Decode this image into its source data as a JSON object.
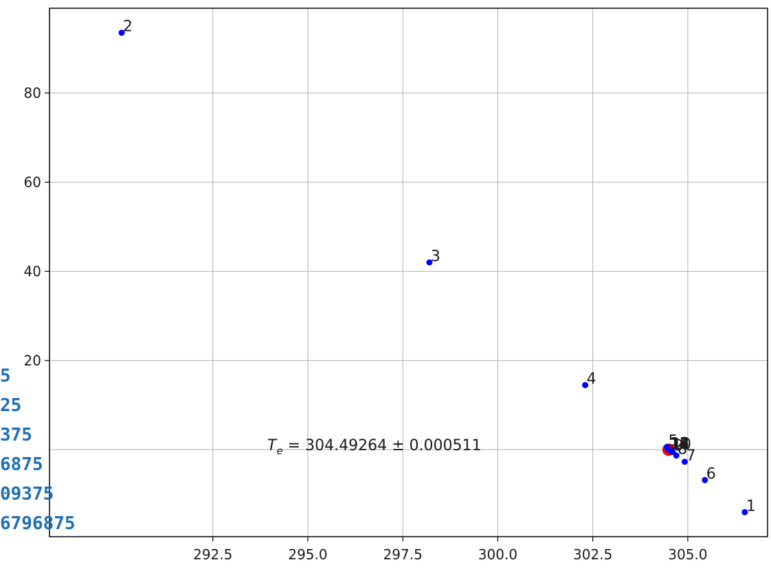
{
  "chart_data": {
    "type": "scatter",
    "title": "",
    "xlabel": "",
    "ylabel": "",
    "xlim": [
      288.2,
      307.1
    ],
    "ylim": [
      -19.5,
      99
    ],
    "grid": true,
    "xticks": [
      "292.5",
      "295.0",
      "297.5",
      "300.0",
      "302.5",
      "305.0"
    ],
    "yticks": [
      "20",
      "40",
      "60",
      "80"
    ],
    "points": [
      {
        "label": "1",
        "x": 306.5,
        "y": -14.0
      },
      {
        "label": "2",
        "x": 290.1,
        "y": 93.5
      },
      {
        "label": "3",
        "x": 298.2,
        "y": 42.0
      },
      {
        "label": "4",
        "x": 302.3,
        "y": 14.5
      },
      {
        "label": "5",
        "x": 304.45,
        "y": 0.6
      },
      {
        "label": "6",
        "x": 305.45,
        "y": -6.8
      },
      {
        "label": "7",
        "x": 304.92,
        "y": -2.7
      },
      {
        "label": "8",
        "x": 304.7,
        "y": -1.3
      },
      {
        "label": "9",
        "x": 304.6,
        "y": -0.5
      },
      {
        "label": "10",
        "x": 304.55,
        "y": -0.2
      },
      {
        "label": "11",
        "x": 304.52,
        "y": -0.1
      },
      {
        "label": "12",
        "x": 304.5,
        "y": -0.05
      },
      {
        "label": "13",
        "x": 304.495,
        "y": 0.0
      },
      {
        "label": "14",
        "x": 304.493,
        "y": 0.0
      },
      {
        "label": "15",
        "x": 304.4927,
        "y": 0.0
      },
      {
        "label": "16",
        "x": 304.49265,
        "y": 0.0
      }
    ],
    "highlight": {
      "x": 304.49264,
      "y": 0.0,
      "color": "#ff0000"
    },
    "annotation": {
      "text_var": "T",
      "text_sub": "e",
      "text_rest": " = 304.49264 ± 0.000511"
    },
    "colors": {
      "points": "#0000ff",
      "highlight": "#ff0000",
      "grid": "#b0b0b0",
      "overlay_text": "#1f6fb2"
    }
  },
  "overlay_labels": [
    "5",
    "25",
    "375",
    "6875",
    "09375",
    "6796875"
  ]
}
